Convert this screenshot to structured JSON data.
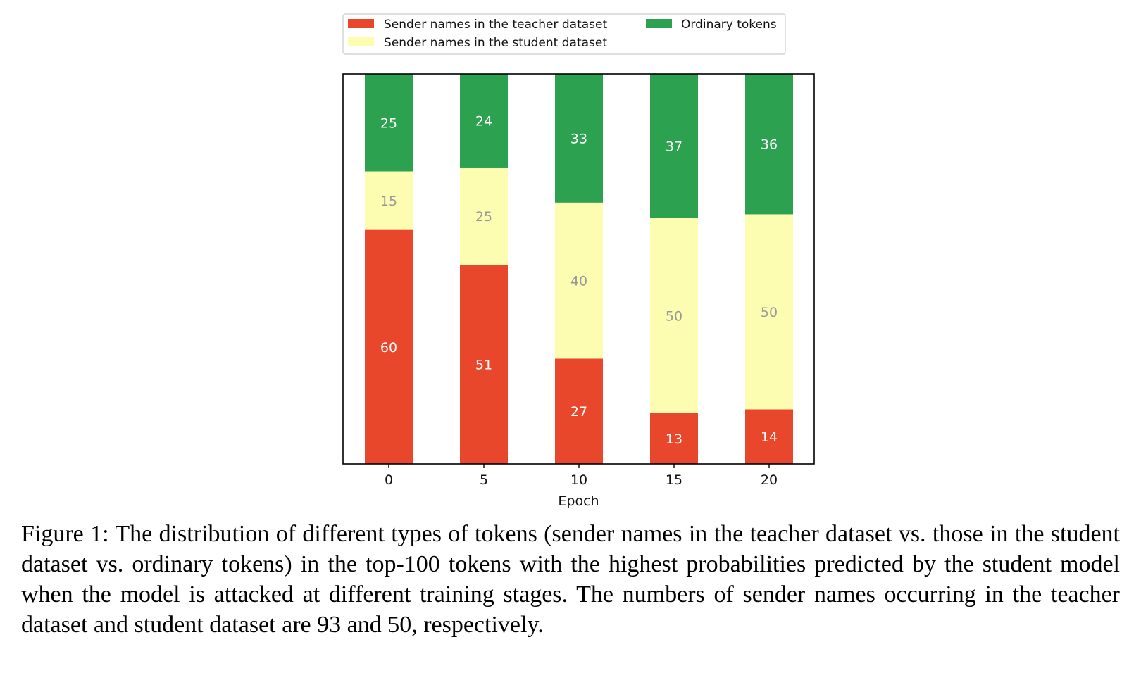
{
  "chart_data": {
    "type": "bar",
    "stacked": true,
    "title": "",
    "xlabel": "Epoch",
    "ylabel": "",
    "categories": [
      "0",
      "5",
      "10",
      "15",
      "20"
    ],
    "ylim": [
      0,
      100
    ],
    "grid": false,
    "legend_position": "top-center",
    "series": [
      {
        "name": "Sender names in the teacher dataset",
        "color": "#e8472c",
        "label_color": "#ffffff",
        "values": [
          60,
          51,
          27,
          13,
          14
        ]
      },
      {
        "name": "Sender names in the student dataset",
        "color": "#fdfdb2",
        "label_color": "#999999",
        "values": [
          15,
          25,
          40,
          50,
          50
        ]
      },
      {
        "name": "Ordinary tokens",
        "color": "#2ca14f",
        "label_color": "#ffffff",
        "values": [
          25,
          24,
          33,
          37,
          36
        ]
      }
    ]
  },
  "caption": "Figure 1: The distribution of different types of tokens (sender names in the teacher dataset vs. those in the student dataset vs. ordinary tokens) in the top-100 tokens with the highest probabilities predicted by the student model when the model is attacked at different training stages. The numbers of sender names occurring in the teacher dataset and student dataset are 93 and 50, respectively."
}
